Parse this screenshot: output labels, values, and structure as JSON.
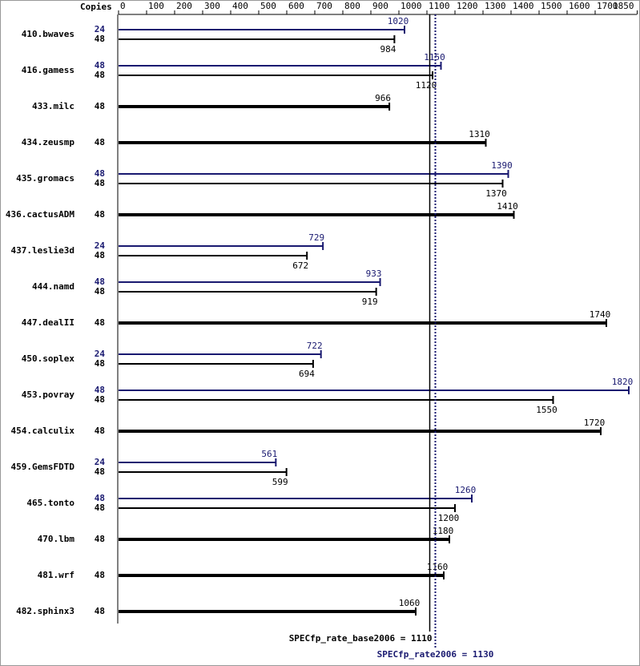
{
  "chart_data": {
    "type": "bar",
    "orientation": "horizontal",
    "copies_label": "Copies",
    "categories": [
      "410.bwaves",
      "416.gamess",
      "433.milc",
      "434.zeusmp",
      "435.gromacs",
      "436.cactusADM",
      "437.leslie3d",
      "444.namd",
      "447.dealII",
      "450.soplex",
      "453.povray",
      "454.calculix",
      "459.GemsFDTD",
      "465.tonto",
      "470.lbm",
      "481.wrf",
      "482.sphinx3"
    ],
    "series": [
      {
        "color": "#000000",
        "copies": [
          48,
          48,
          48,
          48,
          48,
          48,
          48,
          48,
          48,
          48,
          48,
          48,
          48,
          48,
          48,
          48,
          48
        ],
        "values": [
          984,
          1120,
          966,
          1310,
          1370,
          1410,
          672,
          919,
          1740,
          694,
          1550,
          1720,
          599,
          1200,
          1180,
          1160,
          1060
        ]
      },
      {
        "color": "#191970",
        "copies": [
          24,
          48,
          null,
          null,
          48,
          null,
          24,
          48,
          null,
          24,
          48,
          null,
          24,
          48,
          null,
          null,
          null
        ],
        "values": [
          1020,
          1150,
          null,
          null,
          1390,
          null,
          729,
          933,
          null,
          722,
          1820,
          null,
          561,
          1260,
          null,
          null,
          null
        ]
      }
    ],
    "reference_lines": [
      {
        "value": 1110,
        "label": "SPECfp_rate_base2006 = 1110",
        "color": "#000000",
        "style": "solid"
      },
      {
        "value": 1130,
        "label": "SPECfp_rate2006 = 1130",
        "color": "#191970",
        "style": "dotted"
      }
    ],
    "xlim": [
      0,
      1850
    ],
    "xticks": [
      0,
      100,
      200,
      300,
      400,
      500,
      600,
      700,
      800,
      900,
      1000,
      1100,
      1200,
      1300,
      1400,
      1500,
      1600,
      1700,
      1850
    ]
  }
}
